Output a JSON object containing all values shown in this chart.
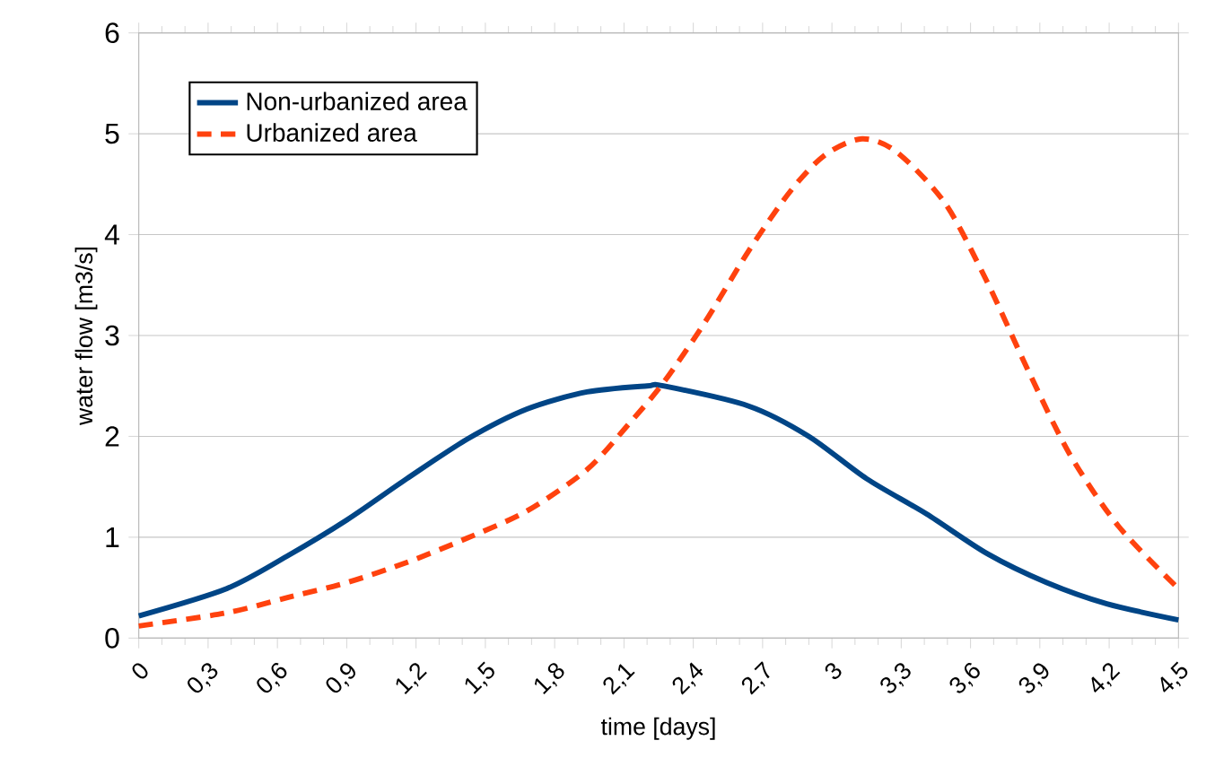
{
  "chart_data": {
    "type": "line",
    "xlabel": "time [days]",
    "ylabel": "water flow [m3/s]",
    "xlim": [
      0,
      4.5
    ],
    "ylim": [
      0,
      6
    ],
    "xticks": [
      0,
      {
        "value": 0.3,
        "label": "0,3"
      },
      {
        "value": 0.6,
        "label": "0,6"
      },
      {
        "value": 0.9,
        "label": "0,9"
      },
      {
        "value": 1.2,
        "label": "1,2"
      },
      {
        "value": 1.5,
        "label": "1,5"
      },
      {
        "value": 1.8,
        "label": "1,8"
      },
      {
        "value": 2.1,
        "label": "2,1"
      },
      {
        "value": 2.4,
        "label": "2,4"
      },
      {
        "value": 2.7,
        "label": "2,7"
      },
      3,
      {
        "value": 3.3,
        "label": "3,3"
      },
      {
        "value": 3.6,
        "label": "3,6"
      },
      {
        "value": 3.9,
        "label": "3,9"
      },
      {
        "value": 4.2,
        "label": "4,2"
      },
      {
        "value": 4.5,
        "label": "4,5"
      }
    ],
    "yticks": [
      0,
      1,
      2,
      3,
      4,
      5,
      6
    ],
    "grid": "y",
    "legend": "top left",
    "marker": "none",
    "series": [
      {
        "name": "Non-urbanized area",
        "color": "#004586",
        "line_style": "solid",
        "x": [
          0,
          0.38,
          0.64,
          0.9,
          1.16,
          1.42,
          1.68,
          1.94,
          2.2,
          2.27,
          2.64,
          2.9,
          3.15,
          3.41,
          3.67,
          3.93,
          4.19,
          4.5
        ],
        "values": [
          0.22,
          0.49,
          0.81,
          1.17,
          1.58,
          1.97,
          2.27,
          2.44,
          2.5,
          2.5,
          2.3,
          2.0,
          1.58,
          1.23,
          0.84,
          0.55,
          0.34,
          0.18
        ]
      },
      {
        "name": "Urbanized area",
        "color": "#ff420e",
        "line_style": "dashed",
        "x": [
          0,
          0.38,
          0.64,
          0.9,
          1.16,
          1.42,
          1.68,
          1.94,
          2.12,
          2.27,
          2.45,
          2.64,
          2.82,
          2.97,
          3.13,
          3.28,
          3.49,
          3.67,
          3.85,
          4.03,
          4.24,
          4.5
        ],
        "values": [
          0.12,
          0.25,
          0.4,
          0.55,
          0.75,
          0.99,
          1.26,
          1.67,
          2.12,
          2.53,
          3.13,
          3.84,
          4.43,
          4.79,
          4.95,
          4.82,
          4.31,
          3.54,
          2.65,
          1.82,
          1.11,
          0.49
        ]
      }
    ]
  }
}
